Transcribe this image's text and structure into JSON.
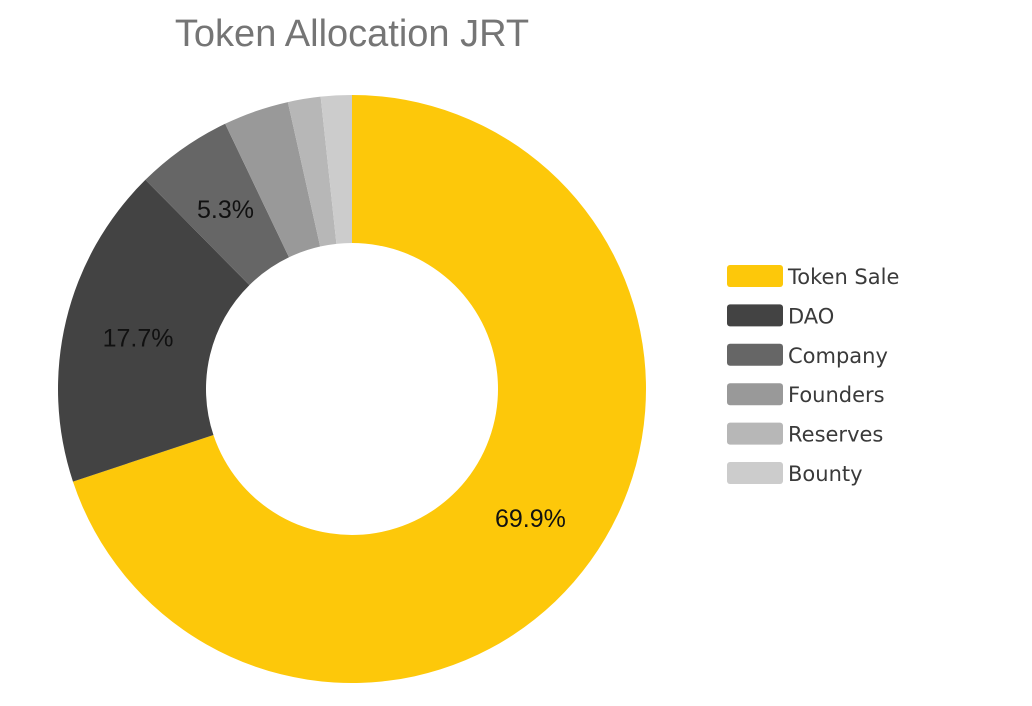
{
  "chart_data": {
    "type": "pie",
    "title": "Token Allocation JRT",
    "donut": true,
    "legend_position": "right",
    "slices": [
      {
        "name": "Token Sale",
        "value": 69.9,
        "color": "#FDC80A",
        "label": "69.9%"
      },
      {
        "name": "DAO",
        "value": 17.7,
        "color": "#434343",
        "label": "17.7%"
      },
      {
        "name": "Company",
        "value": 5.3,
        "color": "#666666",
        "label": "5.3%"
      },
      {
        "name": "Founders",
        "value": 3.6,
        "color": "#999999",
        "label": ""
      },
      {
        "name": "Reserves",
        "value": 1.8,
        "color": "#B7B7B7",
        "label": ""
      },
      {
        "name": "Bounty",
        "value": 1.7,
        "color": "#CCCCCC",
        "label": ""
      }
    ]
  }
}
